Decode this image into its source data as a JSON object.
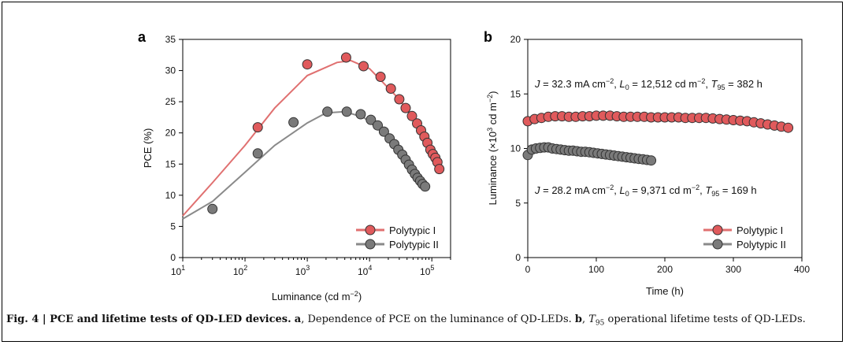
{
  "caption": {
    "fig": "Fig. 4 | PCE and lifetime tests of QD-LED devices.",
    "a": "a",
    "a_text": ", Dependence of PCE on the luminance of QD-LEDs. ",
    "b": "b",
    "b_pre": ", ",
    "t95": "T",
    "t95_sub": "95",
    "b_text": " operational lifetime tests of QD-LEDs."
  },
  "colors": {
    "red": "#e05a5c",
    "red_line": "#e07070",
    "gray": "#7a7a7a",
    "gray_line": "#8a8a8a"
  },
  "chart_data": [
    {
      "panel": "a",
      "type": "scatter",
      "xscale": "log",
      "xlabel": "Luminance (cd m⁻²)",
      "ylabel": "PCE (%)",
      "xlim": [
        10,
        200000
      ],
      "ylim": [
        0,
        35
      ],
      "yticks": [
        0,
        5,
        10,
        15,
        20,
        25,
        30,
        35
      ],
      "xticks": [
        10,
        100,
        1000,
        10000,
        100000
      ],
      "xtick_labels": [
        {
          "base": "10",
          "exp": "1"
        },
        {
          "base": "10",
          "exp": "2"
        },
        {
          "base": "10",
          "exp": "3"
        },
        {
          "base": "10",
          "exp": "4"
        },
        {
          "base": "10",
          "exp": "5"
        }
      ],
      "legend_position": "bottom-right",
      "series": [
        {
          "name": "Polytypic I",
          "points": [
            [
              160,
              20.9
            ],
            [
              1000,
              31.0
            ],
            [
              4200,
              32.1
            ],
            [
              8000,
              30.7
            ],
            [
              15000,
              29.0
            ],
            [
              22000,
              27.1
            ],
            [
              30000,
              25.4
            ],
            [
              38000,
              24.0
            ],
            [
              48000,
              22.7
            ],
            [
              58000,
              21.5
            ],
            [
              67000,
              20.4
            ],
            [
              76000,
              19.4
            ],
            [
              85000,
              18.4
            ],
            [
              95000,
              17.3
            ],
            [
              104000,
              16.6
            ],
            [
              114000,
              16.0
            ],
            [
              123000,
              15.3
            ],
            [
              132000,
              14.2
            ]
          ],
          "fit": [
            [
              10,
              6.7
            ],
            [
              30,
              12.0
            ],
            [
              100,
              18.0
            ],
            [
              300,
              24.0
            ],
            [
              1000,
              29.2
            ],
            [
              3000,
              31.3
            ],
            [
              5000,
              31.6
            ],
            [
              10000,
              30.3
            ],
            [
              30000,
              25.4
            ],
            [
              60000,
              21.3
            ],
            [
              100000,
              17.0
            ],
            [
              140000,
              13.8
            ]
          ]
        },
        {
          "name": "Polytypic II",
          "points": [
            [
              30,
              7.8
            ],
            [
              160,
              16.7
            ],
            [
              600,
              21.7
            ],
            [
              2100,
              23.4
            ],
            [
              4300,
              23.4
            ],
            [
              7200,
              23.0
            ],
            [
              10500,
              22.1
            ],
            [
              13500,
              21.2
            ],
            [
              17000,
              20.2
            ],
            [
              21000,
              19.1
            ],
            [
              25000,
              18.2
            ],
            [
              29000,
              17.3
            ],
            [
              33500,
              16.5
            ],
            [
              38000,
              15.7
            ],
            [
              43000,
              14.9
            ],
            [
              48000,
              14.1
            ],
            [
              53500,
              13.4
            ],
            [
              59000,
              12.8
            ],
            [
              65000,
              12.3
            ],
            [
              71000,
              11.8
            ],
            [
              78000,
              11.4
            ]
          ],
          "fit": [
            [
              10,
              6.2
            ],
            [
              30,
              9.0
            ],
            [
              100,
              13.7
            ],
            [
              300,
              18.0
            ],
            [
              1000,
              21.6
            ],
            [
              2000,
              23.2
            ],
            [
              4000,
              23.4
            ],
            [
              8000,
              22.5
            ],
            [
              20000,
              19.3
            ],
            [
              40000,
              15.5
            ],
            [
              80000,
              11.1
            ]
          ]
        }
      ]
    },
    {
      "panel": "b",
      "type": "scatter",
      "xlabel": "Time (h)",
      "ylabel": "Luminance (×10³ cd m⁻²)",
      "xlim": [
        0,
        400
      ],
      "ylim": [
        0,
        20
      ],
      "xticks": [
        0,
        100,
        200,
        300,
        400
      ],
      "yticks": [
        0,
        5,
        10,
        15,
        20
      ],
      "legend_position": "bottom-right",
      "annotations": [
        {
          "series": "Polytypic I",
          "j": "J",
          "eq1": " = 32.3 mA cm",
          "sup1": "−2",
          "sep1": ", ",
          "L": "L",
          "Lsub": "0",
          "eq2": " = 12,512 cd m",
          "sup2": "−2",
          "sep2": ", ",
          "T": "T",
          "Tsub": "95",
          "eq3": " = 382 h"
        },
        {
          "series": "Polytypic II",
          "j": "J",
          "eq1": " = 28.2 mA cm",
          "sup1": "−2",
          "sep1": ", ",
          "L": "L",
          "Lsub": "0",
          "eq2": " = 9,371 cd m",
          "sup2": "−2",
          "sep2": ", ",
          "T": "T",
          "Tsub": "95",
          "eq3": " = 169 h"
        }
      ],
      "series": [
        {
          "name": "Polytypic I",
          "points": [
            [
              0,
              12.5
            ],
            [
              10,
              12.7
            ],
            [
              20,
              12.8
            ],
            [
              30,
              12.9
            ],
            [
              40,
              12.95
            ],
            [
              50,
              12.95
            ],
            [
              60,
              12.9
            ],
            [
              70,
              12.9
            ],
            [
              80,
              12.95
            ],
            [
              90,
              12.95
            ],
            [
              100,
              13.0
            ],
            [
              110,
              13.0
            ],
            [
              120,
              13.0
            ],
            [
              130,
              12.95
            ],
            [
              140,
              12.9
            ],
            [
              150,
              12.9
            ],
            [
              160,
              12.9
            ],
            [
              170,
              12.9
            ],
            [
              180,
              12.85
            ],
            [
              190,
              12.85
            ],
            [
              200,
              12.85
            ],
            [
              210,
              12.85
            ],
            [
              220,
              12.85
            ],
            [
              230,
              12.8
            ],
            [
              240,
              12.8
            ],
            [
              250,
              12.8
            ],
            [
              260,
              12.8
            ],
            [
              270,
              12.75
            ],
            [
              280,
              12.7
            ],
            [
              290,
              12.65
            ],
            [
              300,
              12.6
            ],
            [
              310,
              12.55
            ],
            [
              320,
              12.5
            ],
            [
              330,
              12.4
            ],
            [
              340,
              12.3
            ],
            [
              350,
              12.2
            ],
            [
              360,
              12.1
            ],
            [
              370,
              12.0
            ],
            [
              380,
              11.9
            ]
          ]
        },
        {
          "name": "Polytypic II",
          "points": [
            [
              0,
              9.4
            ],
            [
              6,
              9.9
            ],
            [
              12,
              10.0
            ],
            [
              18,
              10.05
            ],
            [
              24,
              10.1
            ],
            [
              30,
              10.1
            ],
            [
              36,
              10.0
            ],
            [
              42,
              9.95
            ],
            [
              48,
              9.9
            ],
            [
              54,
              9.85
            ],
            [
              60,
              9.8
            ],
            [
              66,
              9.8
            ],
            [
              72,
              9.75
            ],
            [
              78,
              9.7
            ],
            [
              84,
              9.7
            ],
            [
              90,
              9.65
            ],
            [
              96,
              9.6
            ],
            [
              102,
              9.55
            ],
            [
              108,
              9.5
            ],
            [
              114,
              9.45
            ],
            [
              120,
              9.4
            ],
            [
              126,
              9.35
            ],
            [
              132,
              9.3
            ],
            [
              138,
              9.25
            ],
            [
              144,
              9.2
            ],
            [
              150,
              9.15
            ],
            [
              156,
              9.1
            ],
            [
              162,
              9.05
            ],
            [
              168,
              9.0
            ],
            [
              174,
              8.95
            ],
            [
              180,
              8.9
            ]
          ]
        }
      ]
    }
  ]
}
